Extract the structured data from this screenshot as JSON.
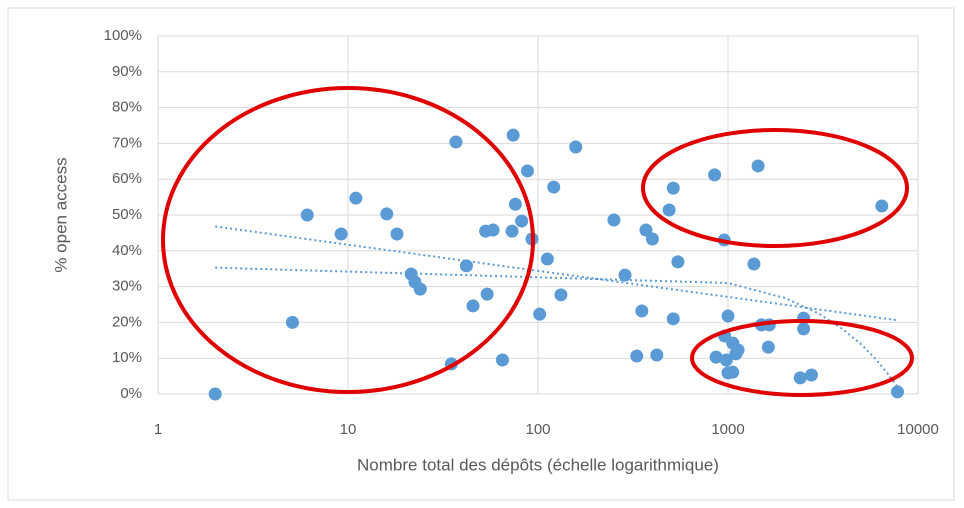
{
  "chart_data": {
    "type": "scatter",
    "x_label": "Nombre total des dépôts (échelle logarithmique)",
    "y_label": "% open access",
    "log_x": true,
    "grid": true,
    "color": "#5b9bd5",
    "xlim": [
      1,
      10000
    ],
    "xticks": [
      1,
      10,
      100,
      1000,
      10000
    ],
    "ylim": [
      0,
      100
    ],
    "yticks": [
      {
        "value": 0,
        "label": "0%"
      },
      {
        "value": 10,
        "label": "10%"
      },
      {
        "value": 20,
        "label": "20%"
      },
      {
        "value": 30,
        "label": "30%"
      },
      {
        "value": 40,
        "label": "40%"
      },
      {
        "value": 50,
        "label": "50%"
      },
      {
        "value": 60,
        "label": "60%"
      },
      {
        "value": 70,
        "label": "70%"
      },
      {
        "value": 80,
        "label": "80%"
      },
      {
        "value": 90,
        "label": "90%"
      },
      {
        "value": 100,
        "label": "100%"
      }
    ],
    "x": [
      2,
      5.1,
      6.1,
      9.2,
      11,
      16,
      18.1,
      21.5,
      22.5,
      24,
      35,
      37,
      42,
      45.5,
      53,
      58,
      54,
      65,
      73,
      74,
      76,
      82,
      88,
      93,
      102,
      112,
      121,
      132,
      158,
      251,
      287,
      331,
      352,
      370,
      400,
      422,
      490,
      515,
      515,
      545,
      850,
      866,
      955,
      960,
      1000,
      1000,
      1060,
      1100,
      1130,
      1060,
      980,
      1500,
      1650,
      1630,
      1370,
      1440,
      2400,
      2500,
      2500,
      2750,
      6450,
      7800
    ],
    "values": [
      0,
      20,
      50,
      44.7,
      54.7,
      50.3,
      44.7,
      33.5,
      31.3,
      29.3,
      8.4,
      70.4,
      35.8,
      24.6,
      45.5,
      45.8,
      27.9,
      9.5,
      45.5,
      72.3,
      53,
      48.3,
      62.3,
      43.3,
      22.3,
      37.7,
      57.8,
      27.7,
      69,
      48.6,
      33.2,
      10.6,
      23.2,
      45.8,
      43.3,
      10.9,
      51.4,
      57.5,
      21,
      36.9,
      61.2,
      10.3,
      43,
      16.2,
      21.8,
      5.9,
      14.2,
      11.2,
      12.3,
      6.1,
      9.5,
      19.3,
      19.3,
      13.1,
      36.3,
      63.7,
      4.5,
      18.2,
      21.2,
      5.3,
      52.5,
      0.6
    ],
    "trendlines": [
      {
        "x": [
          2,
          7800
        ],
        "values": [
          46.8,
          20.6
        ]
      },
      {
        "x": [
          2,
          1000,
          2000,
          3000,
          4000,
          5000,
          6000,
          7000,
          7800
        ],
        "values": [
          35.3,
          31,
          26.8,
          22.5,
          18.2,
          14,
          9.7,
          5.4,
          2
        ]
      }
    ]
  }
}
